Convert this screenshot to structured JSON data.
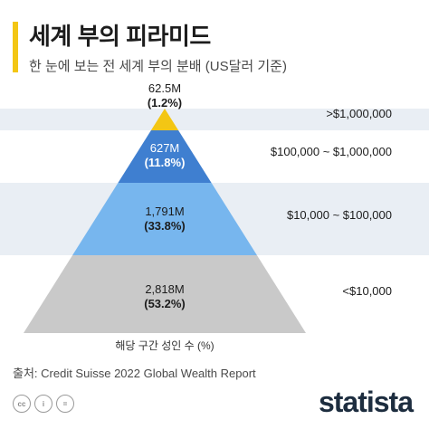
{
  "header": {
    "title": "세계 부의 피라미드",
    "subtitle": "한 눈에 보는 전 세계 부의 분배 (US달러 기준)"
  },
  "chart_data": {
    "type": "pyramid",
    "tiers": [
      {
        "wealth_range": ">$1,000,000",
        "adults": "62.5M",
        "share": "(1.2%)",
        "adults_millions": 62.5,
        "share_pct": 1.2,
        "color": "#f3c614"
      },
      {
        "wealth_range": "$100,000 ~ $1,000,000",
        "adults": "627M",
        "share": "(11.8%)",
        "adults_millions": 627,
        "share_pct": 11.8,
        "color": "#3f7fd0"
      },
      {
        "wealth_range": "$10,000 ~ $100,000",
        "adults": "1,791M",
        "share": "(33.8%)",
        "adults_millions": 1791,
        "share_pct": 33.8,
        "color": "#77b6ee"
      },
      {
        "wealth_range": "<$10,000",
        "adults": "2,818M",
        "share": "(53.2%)",
        "adults_millions": 2818,
        "share_pct": 53.2,
        "color": "#c9c9c9"
      }
    ],
    "xlabel": "해당 구간 성인 수 (%)",
    "band_color": "#e9eef4"
  },
  "footer": {
    "source": "출처: Credit Suisse 2022 Global Wealth Report",
    "brand": "statista",
    "license_icons": [
      "cc-icon",
      "person-icon",
      "equals-icon"
    ],
    "license_labels": [
      "cc",
      "i",
      "="
    ]
  }
}
